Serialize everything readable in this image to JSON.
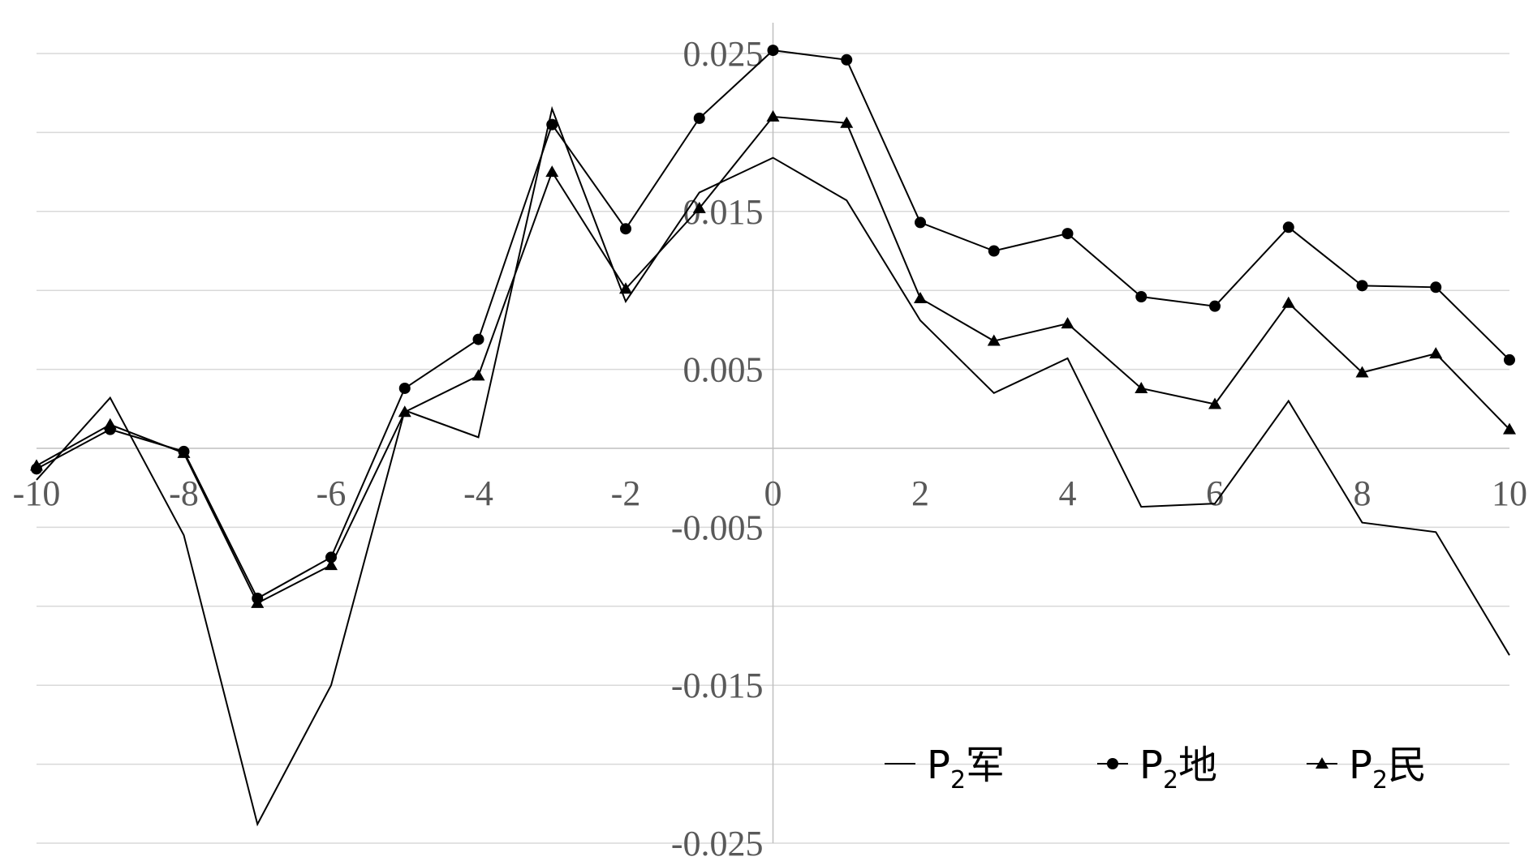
{
  "chart_data": {
    "type": "line",
    "title": "",
    "xlabel": "",
    "ylabel": "",
    "x": [
      -10,
      -9,
      -8,
      -7,
      -6,
      -5,
      -4,
      -3,
      -2,
      -1,
      0,
      1,
      2,
      3,
      4,
      5,
      6,
      7,
      8,
      9,
      10
    ],
    "xlim": [
      -10,
      10
    ],
    "ylim": [
      -0.025,
      0.025
    ],
    "x_ticks": [
      "-10",
      "-8",
      "-6",
      "-4",
      "-2",
      "0",
      "2",
      "4",
      "6",
      "8",
      "10"
    ],
    "x_tick_values": [
      -10,
      -8,
      -6,
      -4,
      -2,
      0,
      2,
      4,
      6,
      8,
      10
    ],
    "y_ticks": [
      "0.025",
      "0.015",
      "0.005",
      "-0.005",
      "-0.015",
      "-0.025"
    ],
    "y_tick_values": [
      0.025,
      0.015,
      0.005,
      -0.005,
      -0.015,
      -0.025
    ],
    "y_gridlines": [
      0.025,
      0.02,
      0.015,
      0.01,
      0.005,
      0,
      -0.005,
      -0.01,
      -0.015,
      -0.02,
      -0.025
    ],
    "grid": true,
    "legend_position": "bottom-right",
    "series": [
      {
        "name": "P2军",
        "name_main": "P",
        "name_sub": "2",
        "name_suffix": "军",
        "marker": "none",
        "values": [
          -0.002,
          0.0032,
          -0.0055,
          -0.0238,
          -0.015,
          0.0024,
          0.0007,
          0.0215,
          0.0093,
          0.0162,
          0.0184,
          0.0157,
          0.0081,
          0.0035,
          0.0057,
          -0.0037,
          -0.0035,
          0.003,
          -0.0047,
          -0.0053,
          -0.0131
        ]
      },
      {
        "name": "P2地",
        "name_main": "P",
        "name_sub": "2",
        "name_suffix": "地",
        "marker": "circle",
        "values": [
          -0.0013,
          0.0012,
          -0.0002,
          -0.0095,
          -0.0069,
          0.0038,
          0.0069,
          0.0205,
          0.0139,
          0.0209,
          0.0252,
          0.0246,
          0.0143,
          0.0125,
          0.0136,
          0.0096,
          0.009,
          0.014,
          0.0103,
          0.0102,
          0.0056
        ]
      },
      {
        "name": "P2民",
        "name_main": "P",
        "name_sub": "2",
        "name_suffix": "民",
        "marker": "triangle",
        "values": [
          -0.0011,
          0.0015,
          -0.0003,
          -0.0098,
          -0.0074,
          0.0023,
          0.0046,
          0.0175,
          0.0101,
          0.0152,
          0.021,
          0.0206,
          0.0095,
          0.0068,
          0.0079,
          0.0038,
          0.0028,
          0.0092,
          0.0048,
          0.006,
          0.0012
        ]
      }
    ]
  }
}
